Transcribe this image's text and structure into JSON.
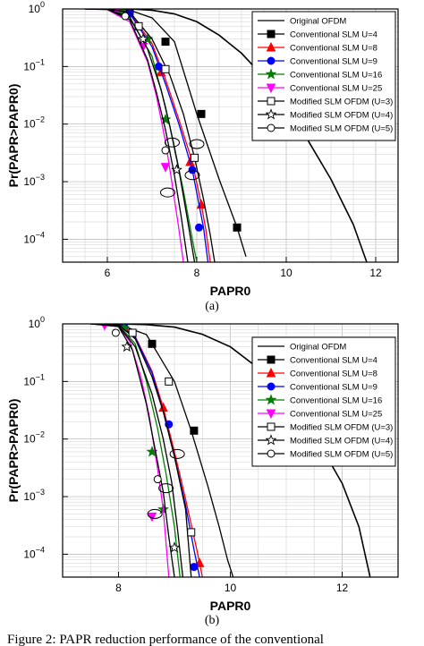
{
  "chart_data": [
    {
      "type": "line",
      "label": "(a)",
      "xlabel": "PAPR0",
      "ylabel": "Pr(PAPR>PAPR0)",
      "xlim": [
        5,
        12.5
      ],
      "ylim": [
        4e-05,
        1
      ],
      "yscale": "log",
      "xticks": [
        6,
        8,
        10,
        12
      ],
      "yticks": [
        "10^0",
        "10^-1",
        "10^-2",
        "10^-3",
        "10^-4"
      ],
      "grid": true,
      "legend_position": "top-right",
      "series": [
        {
          "name": "Original OFDM",
          "marker": "none",
          "color": "#000000",
          "x": [
            6.5,
            7.0,
            7.5,
            8.0,
            8.5,
            9.0,
            9.5,
            10.0,
            10.5,
            11.0,
            11.5,
            11.8
          ],
          "y": [
            1.0,
            0.95,
            0.82,
            0.6,
            0.35,
            0.17,
            0.065,
            0.02,
            0.005,
            0.0011,
            0.00018,
            4e-05
          ]
        },
        {
          "name": "Conventional SLM U=4",
          "marker": "square-filled",
          "color": "#000000",
          "x": [
            5.5,
            6.0,
            6.5,
            7.0,
            7.5,
            8.0,
            8.5,
            8.9,
            9.1
          ],
          "y": [
            1.0,
            0.998,
            0.95,
            0.7,
            0.27,
            0.015,
            0.0011,
            0.00016,
            5e-05
          ],
          "markers_x": [
            6.5,
            7.3,
            8.1,
            8.9
          ],
          "markers_y": [
            0.95,
            0.27,
            0.015,
            0.00016
          ]
        },
        {
          "name": "Conventional SLM U=8",
          "marker": "triangle-up",
          "color": "#ff0000",
          "x": [
            5.5,
            6.0,
            6.5,
            7.0,
            7.3,
            7.6,
            7.9,
            8.1,
            8.2,
            8.3
          ],
          "y": [
            1.0,
            0.99,
            0.85,
            0.25,
            0.06,
            0.012,
            0.0022,
            0.0004,
            0.00015,
            4e-05
          ],
          "markers_x": [
            6.5,
            7.2,
            7.85,
            8.1
          ],
          "markers_y": [
            0.85,
            0.08,
            0.0022,
            0.0004
          ]
        },
        {
          "name": "Conventional SLM U=9",
          "marker": "circle-filled",
          "color": "#0000ff",
          "x": [
            5.5,
            6.0,
            6.5,
            7.0,
            7.3,
            7.6,
            7.9,
            8.05,
            8.15,
            8.25
          ],
          "y": [
            1.0,
            0.99,
            0.83,
            0.22,
            0.05,
            0.01,
            0.0016,
            0.0004,
            0.00016,
            4e-05
          ],
          "markers_x": [
            6.5,
            7.15,
            7.9,
            8.05
          ],
          "markers_y": [
            0.83,
            0.1,
            0.0016,
            0.00016
          ]
        },
        {
          "name": "Conventional SLM U=16",
          "marker": "star-filled",
          "color": "#008000",
          "x": [
            5.5,
            6.0,
            6.5,
            7.0,
            7.3,
            7.5,
            7.7,
            7.9,
            8.0
          ],
          "y": [
            1.0,
            0.98,
            0.7,
            0.15,
            0.02,
            0.004,
            0.0007,
            0.0001,
            4e-05
          ],
          "markers_x": [
            6.3,
            6.9,
            7.3
          ],
          "markers_y": [
            0.9,
            0.3,
            0.012
          ]
        },
        {
          "name": "Conventional SLM U=25",
          "marker": "triangle-down",
          "color": "#ff00ff",
          "x": [
            5.5,
            6.0,
            6.5,
            6.9,
            7.1,
            7.3,
            7.45,
            7.6,
            7.7
          ],
          "y": [
            1.0,
            0.97,
            0.6,
            0.12,
            0.03,
            0.005,
            0.0009,
            0.00015,
            4e-05
          ],
          "markers_x": [
            6.2,
            6.8,
            7.3
          ],
          "markers_y": [
            0.95,
            0.22,
            0.0018
          ]
        },
        {
          "name": "Modified SLM OFDM (U=3)",
          "marker": "square-open",
          "color": "#000000",
          "x": [
            5.5,
            6.0,
            6.5,
            7.0,
            7.4,
            7.7,
            7.95,
            8.15,
            8.3,
            8.4
          ],
          "y": [
            1.0,
            0.99,
            0.88,
            0.3,
            0.07,
            0.015,
            0.0026,
            0.0005,
            0.00012,
            4e-05
          ],
          "markers_x": [
            6.7,
            7.3,
            7.95
          ],
          "markers_y": [
            0.5,
            0.09,
            0.0026
          ]
        },
        {
          "name": "Modified SLM OFDM (U=4)",
          "marker": "star-open",
          "color": "#000000",
          "x": [
            5.5,
            6.0,
            6.5,
            6.9,
            7.2,
            7.4,
            7.6,
            7.8,
            7.95
          ],
          "y": [
            1.0,
            0.985,
            0.72,
            0.2,
            0.04,
            0.009,
            0.0016,
            0.0002,
            4e-05
          ],
          "markers_x": [
            6.8,
            7.55
          ],
          "markers_y": [
            0.3,
            0.0016
          ]
        },
        {
          "name": "Modified SLM OFDM (U=5)",
          "marker": "circle-open",
          "color": "#000000",
          "x": [
            5.5,
            6.0,
            6.5,
            6.9,
            7.1,
            7.3,
            7.5,
            7.65,
            7.8
          ],
          "y": [
            1.0,
            0.985,
            0.65,
            0.13,
            0.035,
            0.008,
            0.0013,
            0.00025,
            4e-05
          ],
          "markers_x": [
            6.4,
            7.3
          ],
          "markers_y": [
            0.75,
            0.0035
          ]
        }
      ],
      "annotations": [
        {
          "type": "ellipse",
          "x": 7.45,
          "y": 0.0048
        },
        {
          "type": "ellipse",
          "x": 7.9,
          "y": 0.0013
        },
        {
          "type": "ellipse",
          "x": 7.35,
          "y": 0.00065
        },
        {
          "type": "ellipse",
          "x": 8.0,
          "y": 0.0045
        }
      ]
    },
    {
      "type": "line",
      "label": "(b)",
      "xlabel": "PAPR0",
      "ylabel": "Pr(PAPR>PAPR0)",
      "xlim": [
        7,
        13
      ],
      "ylim": [
        4e-05,
        1
      ],
      "yscale": "log",
      "xticks": [
        8,
        10,
        12
      ],
      "yticks": [
        "10^0",
        "10^-1",
        "10^-2",
        "10^-3",
        "10^-4"
      ],
      "grid": true,
      "legend_position": "top-right",
      "series": [
        {
          "name": "Original OFDM",
          "marker": "none",
          "color": "#000000",
          "x": [
            8.0,
            8.5,
            9.0,
            9.5,
            10.0,
            10.5,
            11.0,
            11.5,
            12.0,
            12.3,
            12.5
          ],
          "y": [
            1.0,
            0.97,
            0.88,
            0.66,
            0.4,
            0.17,
            0.055,
            0.012,
            0.0017,
            0.0003,
            4e-05
          ]
        },
        {
          "name": "Conventional SLM U=4",
          "marker": "square-filled",
          "color": "#000000",
          "x": [
            7.5,
            8.0,
            8.5,
            9.0,
            9.3,
            9.6,
            9.8,
            9.95,
            10.05
          ],
          "y": [
            1.0,
            0.99,
            0.65,
            0.1,
            0.014,
            0.0015,
            0.0003,
            8e-05,
            4e-05
          ],
          "markers_x": [
            8.6,
            9.35
          ],
          "markers_y": [
            0.45,
            0.014
          ]
        },
        {
          "name": "Conventional SLM U=8",
          "marker": "triangle-up",
          "color": "#ff0000",
          "x": [
            7.5,
            8.0,
            8.3,
            8.6,
            8.8,
            9.0,
            9.2,
            9.4,
            9.5
          ],
          "y": [
            1.0,
            0.98,
            0.6,
            0.15,
            0.035,
            0.006,
            0.0009,
            0.00012,
            4e-05
          ],
          "markers_x": [
            8.1,
            8.8,
            9.45
          ],
          "markers_y": [
            0.9,
            0.035,
            7e-05
          ]
        },
        {
          "name": "Conventional SLM U=9",
          "marker": "circle-filled",
          "color": "#0000ff",
          "x": [
            7.5,
            8.0,
            8.3,
            8.6,
            8.8,
            9.0,
            9.2,
            9.35,
            9.45
          ],
          "y": [
            1.0,
            0.975,
            0.58,
            0.14,
            0.03,
            0.005,
            0.0007,
            0.00012,
            4e-05
          ],
          "markers_x": [
            8.1,
            8.9,
            9.35
          ],
          "markers_y": [
            0.9,
            0.018,
            6e-05
          ]
        },
        {
          "name": "Conventional SLM U=16",
          "marker": "star-filled",
          "color": "#008000",
          "x": [
            7.5,
            8.0,
            8.3,
            8.5,
            8.7,
            8.85,
            9.0,
            9.1
          ],
          "y": [
            1.0,
            0.95,
            0.45,
            0.1,
            0.015,
            0.0025,
            0.0003,
            4e-05
          ],
          "markers_x": [
            8.1,
            8.6,
            8.8
          ],
          "markers_y": [
            0.85,
            0.006,
            0.0006
          ]
        },
        {
          "name": "Conventional SLM U=25",
          "marker": "triangle-down",
          "color": "#ff00ff",
          "x": [
            7.5,
            8.0,
            8.2,
            8.4,
            8.55,
            8.7,
            8.8,
            8.9
          ],
          "y": [
            1.0,
            0.9,
            0.5,
            0.12,
            0.025,
            0.003,
            0.0006,
            4e-05
          ],
          "markers_x": [
            7.75,
            8.6
          ],
          "markers_y": [
            0.95,
            0.00045
          ]
        },
        {
          "name": "Modified SLM OFDM (U=3)",
          "marker": "square-open",
          "color": "#000000",
          "x": [
            7.5,
            8.0,
            8.3,
            8.6,
            8.8,
            9.0,
            9.2,
            9.3
          ],
          "y": [
            1.0,
            0.97,
            0.55,
            0.12,
            0.03,
            0.005,
            0.0006,
            4e-05
          ],
          "markers_x": [
            8.25,
            8.9,
            9.3
          ],
          "markers_y": [
            0.7,
            0.1,
            0.00024
          ]
        },
        {
          "name": "Modified SLM OFDM (U=4)",
          "marker": "star-open",
          "color": "#000000",
          "x": [
            7.5,
            8.0,
            8.3,
            8.6,
            8.8,
            8.95,
            9.05,
            9.15
          ],
          "y": [
            1.0,
            0.93,
            0.4,
            0.06,
            0.01,
            0.0018,
            0.0003,
            4e-05
          ],
          "markers_x": [
            8.15,
            9.0
          ],
          "markers_y": [
            0.4,
            0.00013
          ]
        },
        {
          "name": "Modified SLM OFDM (U=5)",
          "marker": "circle-open",
          "color": "#000000",
          "x": [
            7.5,
            8.0,
            8.25,
            8.5,
            8.65,
            8.8,
            8.9,
            9.0
          ],
          "y": [
            1.0,
            0.9,
            0.35,
            0.04,
            0.007,
            0.0012,
            0.0002,
            4e-05
          ],
          "markers_x": [
            7.95,
            8.7
          ],
          "markers_y": [
            0.7,
            0.002
          ]
        }
      ],
      "annotations": [
        {
          "type": "ellipse",
          "x": 9.05,
          "y": 0.0055
        },
        {
          "type": "ellipse",
          "x": 8.85,
          "y": 0.0014
        },
        {
          "type": "ellipse",
          "x": 8.65,
          "y": 0.0005
        }
      ]
    }
  ],
  "caption": "Figure 2: PAPR reduction performance of the conventional"
}
